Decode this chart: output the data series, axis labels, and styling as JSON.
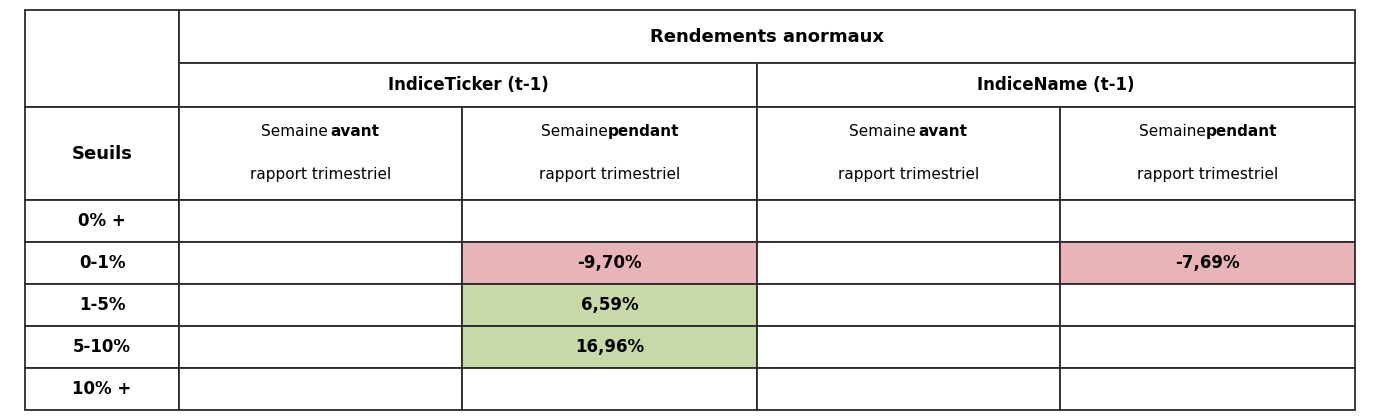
{
  "title": "Rendements anormaux",
  "col_group1": "IndiceTicker (t-1)",
  "col_group2": "IndiceName (t-1)",
  "row_labels": [
    "0% +",
    "0-1%",
    "1-5%",
    "5-10%",
    "10% +"
  ],
  "cell_data": [
    [
      "",
      "",
      "",
      ""
    ],
    [
      "",
      "-9,70%",
      "",
      "-7,69%"
    ],
    [
      "",
      "6,59%",
      "",
      ""
    ],
    [
      "",
      "16,96%",
      "",
      ""
    ],
    [
      "",
      "",
      "",
      ""
    ]
  ],
  "cell_colors": [
    [
      "#ffffff",
      "#ffffff",
      "#ffffff",
      "#ffffff"
    ],
    [
      "#ffffff",
      "#e8b4b8",
      "#ffffff",
      "#e8b4b8"
    ],
    [
      "#ffffff",
      "#c8d9a8",
      "#ffffff",
      "#ffffff"
    ],
    [
      "#ffffff",
      "#c8d9a8",
      "#ffffff",
      "#ffffff"
    ],
    [
      "#ffffff",
      "#ffffff",
      "#ffffff",
      "#ffffff"
    ]
  ],
  "bg_color": "#ffffff",
  "title_fontsize": 13,
  "group_fontsize": 12,
  "header_fontsize": 11,
  "cell_fontsize": 12,
  "seuils_fontsize": 13
}
